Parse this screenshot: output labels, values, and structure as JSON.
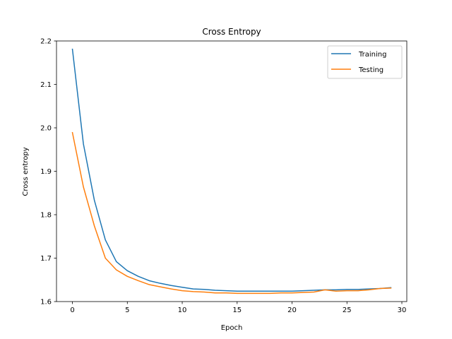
{
  "chart_data": {
    "type": "line",
    "title": "Cross Entropy",
    "xlabel": "Epoch",
    "ylabel": "Cross entropy",
    "xlim": [
      -1.45,
      30.45
    ],
    "ylim": [
      1.6,
      2.2
    ],
    "xticks": [
      "0",
      "5",
      "10",
      "15",
      "20",
      "25",
      "30"
    ],
    "yticks": [
      "1.6",
      "1.7",
      "1.8",
      "1.9",
      "2.0",
      "2.1",
      "2.2"
    ],
    "legend_position": "top-right",
    "grid": false,
    "x": [
      0,
      1,
      2,
      3,
      4,
      5,
      6,
      7,
      8,
      9,
      10,
      11,
      12,
      13,
      14,
      15,
      16,
      17,
      18,
      19,
      20,
      21,
      22,
      23,
      24,
      25,
      26,
      27,
      28,
      29
    ],
    "series": [
      {
        "name": "Training",
        "color": "#1f77b4",
        "values": [
          2.181,
          1.963,
          1.833,
          1.742,
          1.692,
          1.671,
          1.658,
          1.648,
          1.642,
          1.637,
          1.633,
          1.629,
          1.628,
          1.626,
          1.625,
          1.624,
          1.624,
          1.624,
          1.624,
          1.624,
          1.624,
          1.625,
          1.626,
          1.627,
          1.627,
          1.628,
          1.628,
          1.629,
          1.63,
          1.632
        ]
      },
      {
        "name": "Testing",
        "color": "#ff7f0e",
        "values": [
          1.989,
          1.864,
          1.774,
          1.7,
          1.673,
          1.658,
          1.648,
          1.639,
          1.634,
          1.629,
          1.625,
          1.623,
          1.622,
          1.62,
          1.62,
          1.619,
          1.619,
          1.619,
          1.619,
          1.62,
          1.62,
          1.621,
          1.622,
          1.627,
          1.624,
          1.625,
          1.625,
          1.627,
          1.63,
          1.631
        ]
      }
    ]
  }
}
